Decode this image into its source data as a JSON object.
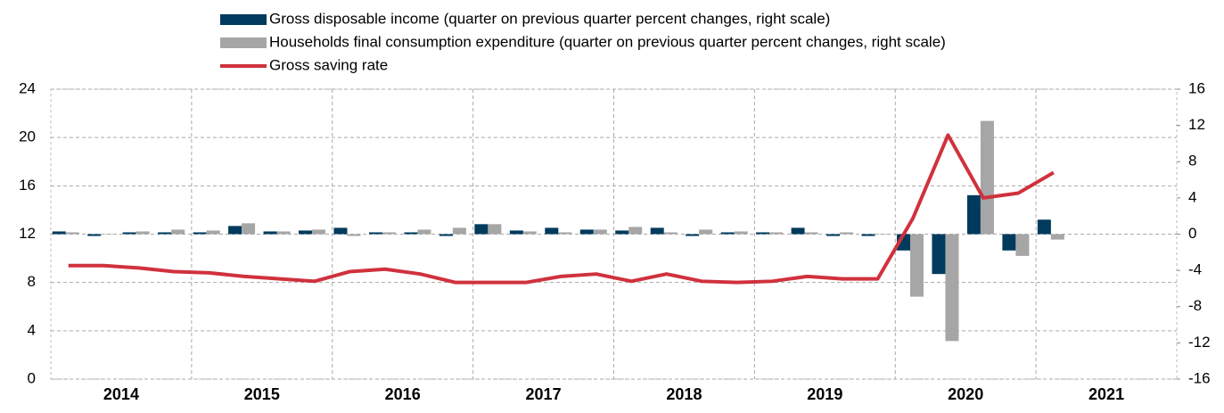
{
  "chart_data": {
    "type": "bar-line",
    "categories": [
      null,
      null,
      null,
      null,
      null,
      null,
      null,
      null,
      null,
      null,
      null,
      null,
      null,
      null,
      null,
      null,
      null,
      null,
      null,
      null,
      null,
      null,
      null,
      null,
      null,
      null,
      null,
      null,
      null,
      null,
      null,
      null
    ],
    "year_labels": [
      "2014",
      "2015",
      "2016",
      "2017",
      "2018",
      "2019",
      "2020",
      "2021"
    ],
    "series": [
      {
        "name": "Gross disposable income (quarter on previous quarter percent changes, right scale)",
        "color": "#003a5d",
        "kind": "bar",
        "axis": "y2",
        "values": [
          0.3,
          -0.2,
          0.2,
          0.2,
          0.2,
          0.9,
          0.3,
          0.4,
          0.7,
          0.2,
          0.2,
          -0.2,
          1.1,
          0.4,
          0.7,
          0.5,
          0.4,
          0.7,
          -0.2,
          0.2,
          0.2,
          0.7,
          -0.2,
          -0.2,
          -1.8,
          -4.4,
          4.3,
          -1.8,
          1.6,
          null,
          null,
          null
        ]
      },
      {
        "name": "Households final consumption expenditure (quarter on previous quarter percent changes, right scale)",
        "color": "#a6a6a6",
        "kind": "bar",
        "axis": "y2",
        "values": [
          0.2,
          0,
          0.3,
          0.5,
          0.4,
          1.2,
          0.3,
          0.5,
          -0.2,
          0.2,
          0.5,
          0.7,
          1.1,
          0.3,
          0.2,
          0.5,
          0.8,
          0.2,
          0.5,
          0.3,
          0.2,
          0.2,
          0.2,
          0,
          -6.9,
          -11.8,
          12.5,
          -2.4,
          -0.6,
          null,
          null,
          null
        ]
      },
      {
        "name": "Gross saving rate",
        "color": "#d0313d",
        "kind": "line",
        "values": [
          9.4,
          9.4,
          9.2,
          8.9,
          8.8,
          8.5,
          8.3,
          8.1,
          8.9,
          9.1,
          8.7,
          8.0,
          8.0,
          8.0,
          8.5,
          8.7,
          8.1,
          8.7,
          8.1,
          8.0,
          8.1,
          8.5,
          8.3,
          8.3,
          13.3,
          20.2,
          15.0,
          15.4,
          17.1,
          null,
          null,
          null
        ]
      }
    ],
    "ylim": [
      0,
      24
    ],
    "yticks": [
      0,
      4,
      8,
      12,
      16,
      20,
      24
    ],
    "y2lim": [
      -16,
      16
    ],
    "y2ticks": [
      -16,
      -12,
      -8,
      -4,
      0,
      4,
      8,
      12,
      16
    ],
    "grid": true
  }
}
